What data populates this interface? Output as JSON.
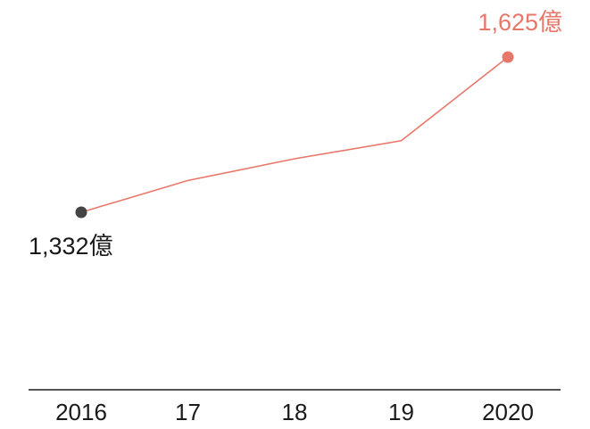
{
  "chart_data": {
    "type": "line",
    "categories": [
      "2016",
      "17",
      "18",
      "19",
      "2020"
    ],
    "series": [
      {
        "values": [
          1332,
          1392,
          1433,
          1467,
          1625
        ]
      }
    ],
    "annotations": [
      {
        "index": 0,
        "text": "1,332億",
        "color": "#444444"
      },
      {
        "index": 4,
        "text": "1,625億",
        "color": "#e8776a"
      }
    ],
    "ylim": [
      1130,
      1660
    ],
    "grid": false,
    "legend": "none",
    "colors": {
      "line": "#e8776a",
      "start_marker": "#444444",
      "end_marker": "#e8776a",
      "axis": "#1a1a1a",
      "start_label": "#1a1a1a",
      "end_label": "#e8776a"
    }
  }
}
